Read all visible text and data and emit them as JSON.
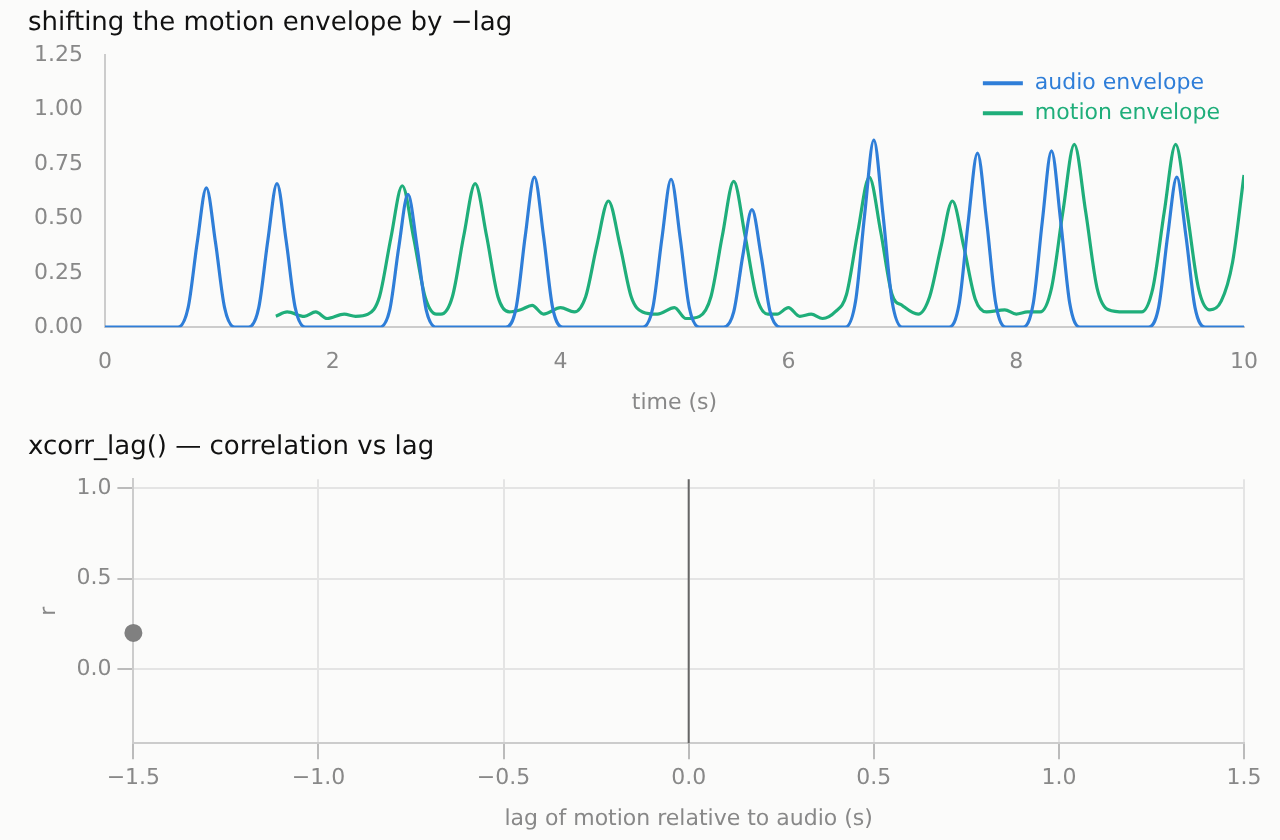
{
  "chart_data": [
    {
      "type": "line",
      "title": "shifting the motion envelope by −lag",
      "xlabel": "time (s)",
      "xlim": [
        0,
        10
      ],
      "xticks": [
        0,
        2,
        4,
        6,
        8,
        10
      ],
      "ylim": [
        0,
        1.25
      ],
      "yticks": [
        {
          "value": 0,
          "label": "0.00"
        },
        0.25,
        {
          "value": 0.5,
          "label": "0.50"
        },
        0.75,
        {
          "value": 1,
          "label": "1.00"
        },
        1.25
      ],
      "grid": false,
      "legend": "top right",
      "marker": "none",
      "line_style": "solid",
      "series": [
        {
          "name": "audio envelope",
          "color": "#2f7ed8",
          "x": [
            0,
            0.64,
            0.73,
            0.81,
            0.89,
            0.97,
            1.05,
            1.14,
            1.26,
            1.35,
            1.43,
            1.51,
            1.59,
            1.67,
            1.76,
            2.41,
            2.5,
            2.58,
            2.66,
            2.74,
            2.82,
            2.91,
            3.52,
            3.61,
            3.69,
            3.77,
            3.85,
            3.93,
            4.02,
            4.72,
            4.81,
            4.89,
            4.97,
            5.05,
            5.13,
            5.22,
            5.43,
            5.52,
            5.6,
            5.68,
            5.76,
            5.84,
            5.93,
            6.5,
            6.59,
            6.67,
            6.75,
            6.83,
            6.91,
            7,
            7.41,
            7.5,
            7.58,
            7.66,
            7.74,
            7.82,
            7.91,
            8.06,
            8.15,
            8.23,
            8.31,
            8.39,
            8.47,
            8.56,
            9.16,
            9.25,
            9.33,
            9.41,
            9.49,
            9.57,
            9.66,
            10
          ],
          "values": [
            0,
            0,
            0.09,
            0.39,
            0.64,
            0.39,
            0.09,
            0,
            0,
            0.09,
            0.4,
            0.66,
            0.4,
            0.09,
            0,
            0,
            0.08,
            0.37,
            0.61,
            0.37,
            0.08,
            0,
            0,
            0.09,
            0.42,
            0.69,
            0.42,
            0.09,
            0,
            0,
            0.09,
            0.41,
            0.68,
            0.41,
            0.09,
            0,
            0,
            0.07,
            0.33,
            0.54,
            0.33,
            0.07,
            0,
            0,
            0.12,
            0.52,
            0.86,
            0.52,
            0.12,
            0,
            0,
            0.11,
            0.49,
            0.8,
            0.49,
            0.11,
            0,
            0,
            0.11,
            0.49,
            0.81,
            0.49,
            0.11,
            0,
            0,
            0.09,
            0.42,
            0.69,
            0.42,
            0.09,
            0,
            0
          ]
        },
        {
          "name": "motion envelope",
          "color": "#1fae7a",
          "x": [
            1.5,
            1.6,
            1.75,
            1.85,
            1.95,
            2.1,
            2.2,
            2.31,
            2.41,
            2.51,
            2.61,
            2.71,
            2.81,
            2.91,
            2.95,
            3.05,
            3.15,
            3.25,
            3.35,
            3.45,
            3.55,
            3.65,
            3.75,
            3.85,
            4,
            4.12,
            4.22,
            4.32,
            4.42,
            4.52,
            4.62,
            4.72,
            4.85,
            5,
            5.1,
            5.22,
            5.32,
            5.42,
            5.52,
            5.62,
            5.72,
            5.82,
            5.9,
            6,
            6.1,
            6.2,
            6.3,
            6.41,
            6.51,
            6.61,
            6.71,
            6.81,
            6.91,
            7,
            7.14,
            7.24,
            7.34,
            7.44,
            7.54,
            7.64,
            7.74,
            7.9,
            8,
            8.1,
            8.21,
            8.31,
            8.41,
            8.51,
            8.61,
            8.71,
            8.81,
            8.95,
            9.1,
            9.2,
            9.3,
            9.4,
            9.5,
            9.6,
            9.7,
            9.8,
            9.9,
            10
          ],
          "values": [
            0.05,
            0.07,
            0.05,
            0.07,
            0.04,
            0.06,
            0.05,
            0.06,
            0.14,
            0.41,
            0.65,
            0.41,
            0.14,
            0.06,
            0.06,
            0.14,
            0.42,
            0.66,
            0.42,
            0.14,
            0.07,
            0.08,
            0.1,
            0.06,
            0.09,
            0.07,
            0.14,
            0.38,
            0.58,
            0.38,
            0.14,
            0.07,
            0.06,
            0.09,
            0.04,
            0.05,
            0.14,
            0.42,
            0.67,
            0.42,
            0.14,
            0.06,
            0.06,
            0.09,
            0.05,
            0.06,
            0.04,
            0.07,
            0.15,
            0.44,
            0.69,
            0.44,
            0.15,
            0.1,
            0.06,
            0.14,
            0.37,
            0.58,
            0.37,
            0.13,
            0.07,
            0.08,
            0.06,
            0.07,
            0.07,
            0.18,
            0.53,
            0.84,
            0.53,
            0.18,
            0.08,
            0.07,
            0.07,
            0.18,
            0.53,
            0.84,
            0.53,
            0.18,
            0.08,
            0.12,
            0.3,
            0.7
          ]
        }
      ]
    },
    {
      "type": "scatter",
      "title": "xcorr_lag() — correlation vs lag",
      "xlabel": "lag of motion relative to audio (s)",
      "ylabel": "r",
      "xlim": [
        -1.5,
        1.5
      ],
      "xticks": [
        {
          "value": -1.5,
          "label": "−1.5"
        },
        {
          "value": -1,
          "label": "−1.0"
        },
        {
          "value": -0.5,
          "label": "−0.5"
        },
        {
          "value": 0,
          "label": "0.0"
        },
        0.5,
        {
          "value": 1,
          "label": "1.0"
        },
        1.5
      ],
      "ylim": [
        -0.41,
        1.05
      ],
      "yticks": [
        {
          "value": 0,
          "label": "0.0"
        },
        0.5,
        {
          "value": 1,
          "label": "1.0"
        }
      ],
      "grid": true,
      "marker": "circle",
      "series": [
        {
          "color": "#808080",
          "x": [
            -1.5
          ],
          "values": [
            0.2
          ]
        }
      ],
      "ref_lines": [
        {
          "axis": "x",
          "value": 0,
          "color": "#666666"
        }
      ]
    }
  ]
}
